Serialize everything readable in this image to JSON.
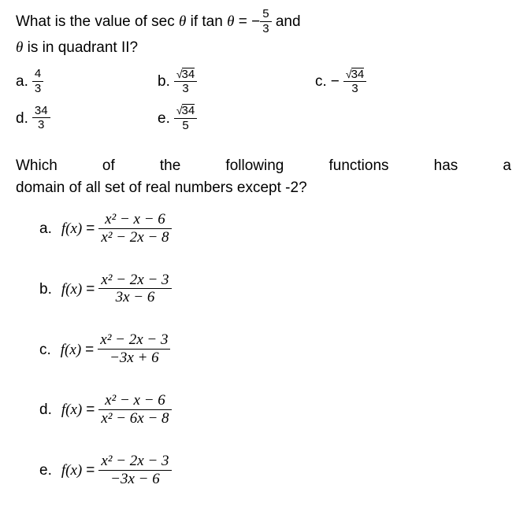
{
  "q1": {
    "text_part1": "What is the value of sec ",
    "theta1": "θ",
    "text_part2": " if tan ",
    "theta2": "θ",
    "equals": " = ",
    "minus": "−",
    "frac_num": "5",
    "frac_den": "3",
    "text_part3": " and",
    "text_line2_theta": "θ",
    "text_line2": " is in quadrant II?",
    "options": {
      "a": {
        "label": "a.",
        "num": "4",
        "den": "3"
      },
      "b": {
        "label": "b.",
        "sqrt_val": "34",
        "den": "3"
      },
      "c": {
        "label": "c.",
        "minus": "−",
        "sqrt_val": "34",
        "den": "3"
      },
      "d": {
        "label": "d.",
        "num": "34",
        "den": "3"
      },
      "e": {
        "label": "e.",
        "sqrt_val": "34",
        "den": "5"
      }
    }
  },
  "q2": {
    "text_line1": "Which of the following functions has a",
    "text_line2": "domain of all set of real numbers except -2?",
    "options": {
      "a": {
        "label": "a.",
        "fx": "f(x)",
        "eq": "=",
        "num": "x² − x − 6",
        "den": "x² − 2x − 8"
      },
      "b": {
        "label": "b.",
        "fx": "f(x)",
        "eq": "=",
        "num": "x² − 2x − 3",
        "den": "3x − 6"
      },
      "c": {
        "label": "c.",
        "fx": "f(x)",
        "eq": "=",
        "num": "x² − 2x − 3",
        "den": "−3x + 6"
      },
      "d": {
        "label": "d.",
        "fx": "f(x)",
        "eq": "=",
        "num": "x² − x − 6",
        "den": "x² − 6x − 8"
      },
      "e": {
        "label": "e.",
        "fx": "f(x)",
        "eq": "=",
        "num": "x² − 2x − 3",
        "den": "−3x − 6"
      }
    }
  }
}
